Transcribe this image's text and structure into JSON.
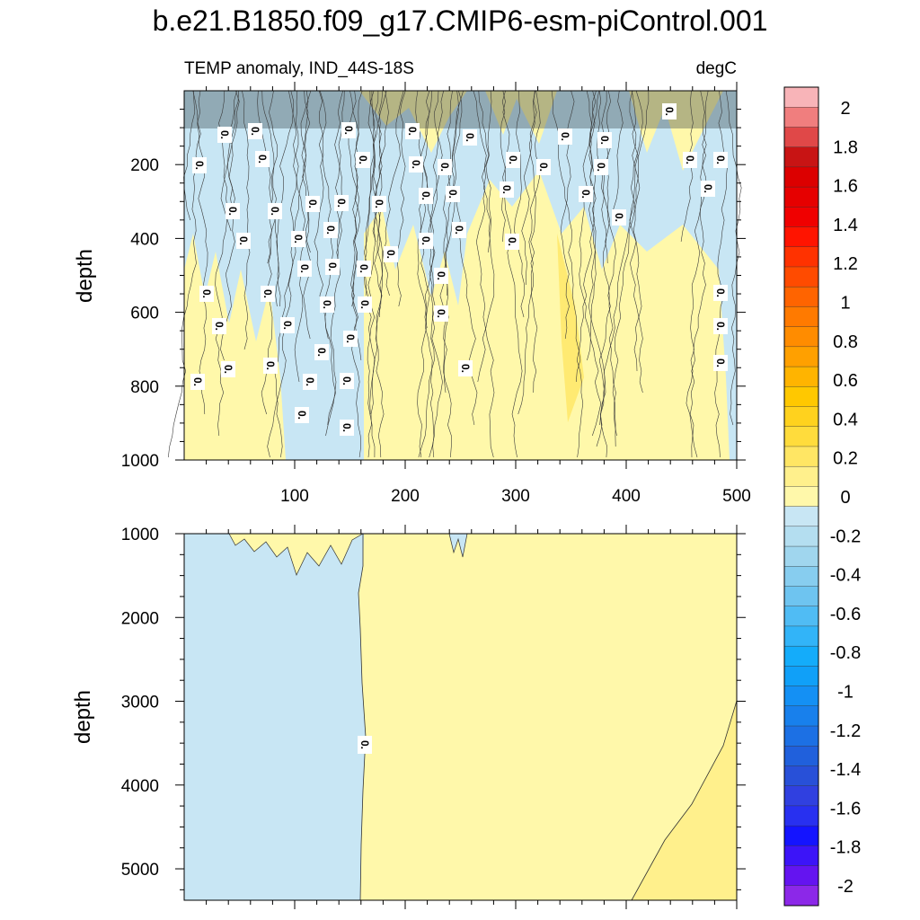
{
  "title": "b.e21.B1850.f09_g17.CMIP6-esm-piControl.001",
  "chart_data": {
    "type": "heatmap",
    "subtitle_left": "TEMP anomaly, IND_44S-18S",
    "subtitle_right": "degC",
    "x_range": [
      0,
      500
    ],
    "x_ticks": [
      "100",
      "200",
      "300",
      "400",
      "500"
    ],
    "panels": [
      {
        "name": "upper",
        "ylabel": "depth",
        "y_range": [
          0,
          1000
        ],
        "y_ticks": [
          "200",
          "400",
          "600",
          "800",
          "1000"
        ],
        "line_label": "0."
      },
      {
        "name": "lower",
        "ylabel": "depth",
        "y_range": [
          1000,
          5375
        ],
        "y_ticks": [
          "1000",
          "2000",
          "3000",
          "4000",
          "5000"
        ],
        "line_label": "0."
      }
    ],
    "colorbar": {
      "labels": [
        "2",
        "1.8",
        "1.6",
        "1.4",
        "1.2",
        "1",
        "0.8",
        "0.6",
        "0.4",
        "0.2",
        "0",
        "-0.2",
        "-0.4",
        "-0.6",
        "-0.8",
        "-1",
        "-1.2",
        "-1.4",
        "-1.6",
        "-1.8",
        "-2"
      ],
      "colors": [
        "#f8b4b8",
        "#f07e7e",
        "#e04848",
        "#c81414",
        "#dc0000",
        "#e60000",
        "#f00000",
        "#ff1400",
        "#ff3200",
        "#ff4b00",
        "#ff6400",
        "#ff7a00",
        "#ff8c00",
        "#ffa000",
        "#ffb400",
        "#ffc800",
        "#ffd21e",
        "#ffdc3c",
        "#ffe664",
        "#fff08c",
        "#fff8aa",
        "#c8e6f4",
        "#b4def0",
        "#a0d6ee",
        "#87cdef",
        "#6ec4f0",
        "#50bcf4",
        "#32b4f8",
        "#14acfa",
        "#10a0f8",
        "#1490f4",
        "#1880ec",
        "#1c70e4",
        "#2060dc",
        "#2850d8",
        "#3040e0",
        "#2830f0",
        "#1414ff",
        "#3c14f8",
        "#6414f0",
        "#8c28e8"
      ]
    },
    "categories": {
      "positive_small": "0 to 0.2",
      "negative_small": "-0.2 to 0"
    }
  }
}
